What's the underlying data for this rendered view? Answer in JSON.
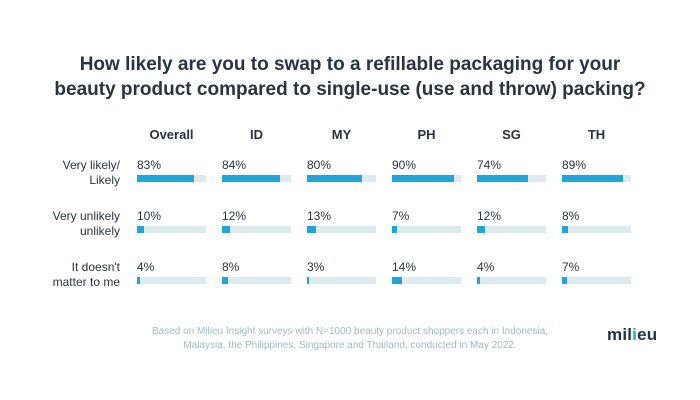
{
  "chart_data": {
    "type": "bar",
    "title_lines": [
      "How likely are you to swap to a refillable packaging for your",
      "beauty product compared to single-use (use and throw) packing?"
    ],
    "columns": [
      "Overall",
      "ID",
      "MY",
      "PH",
      "SG",
      "TH"
    ],
    "rows": [
      {
        "label_lines": [
          "Very likely/",
          "Likely"
        ],
        "values": [
          83,
          84,
          80,
          90,
          74,
          89
        ]
      },
      {
        "label_lines": [
          "Very unlikely",
          "unlikely"
        ],
        "values": [
          10,
          12,
          13,
          7,
          12,
          8
        ]
      },
      {
        "label_lines": [
          "It doesn't",
          "matter to me"
        ],
        "values": [
          4,
          8,
          3,
          14,
          4,
          7
        ]
      }
    ],
    "value_suffix": "%",
    "value_max": 100,
    "colors": {
      "bar": "#1aa7df",
      "track": "#dcebed",
      "text": "#2a3440",
      "footnote": "#9bbec8"
    }
  },
  "footnote_lines": [
    "Based on Milieu Insight surveys with N=1000 beauty product shoppers each in Indonesia,",
    "Malaysia, the Philippines, Singapore and Thailand, conducted in May 2022."
  ],
  "logo": {
    "before": "mil",
    "dot": "i",
    "after": "eu"
  }
}
